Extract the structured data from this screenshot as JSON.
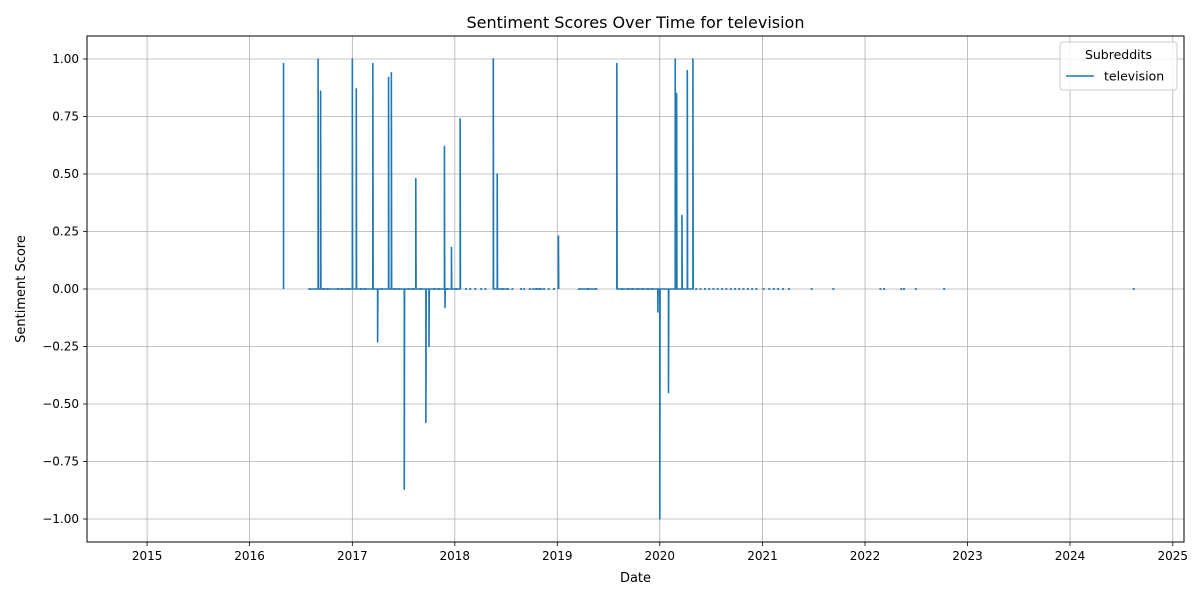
{
  "chart_data": {
    "type": "line",
    "title": "Sentiment Scores Over Time for television",
    "xlabel": "Date",
    "ylabel": "Sentiment Score",
    "xlim": [
      "2014-06-01",
      "2025-02-10"
    ],
    "ylim": [
      -1.1,
      1.1
    ],
    "x_ticks": [
      "2015",
      "2016",
      "2017",
      "2018",
      "2019",
      "2020",
      "2021",
      "2022",
      "2023",
      "2024",
      "2025"
    ],
    "y_ticks": [
      -1.0,
      -0.75,
      -0.5,
      -0.25,
      0.0,
      0.25,
      0.5,
      0.75,
      1.0
    ],
    "y_tick_labels": [
      "−1.00",
      "−0.75",
      "−0.50",
      "−0.25",
      "0.00",
      "0.25",
      "0.50",
      "0.75",
      "1.00"
    ],
    "grid": true,
    "legend": {
      "title": "Subreddits",
      "placement": "top-right"
    },
    "colors": {
      "line": "#1f77b4",
      "grid": "#b0b0b0",
      "axes": "#000000"
    },
    "series": [
      {
        "name": "television",
        "points": [
          [
            "2016-05-01",
            0.0
          ],
          [
            "2016-05-01",
            0.98
          ],
          [
            "2016-05-01",
            0.0
          ],
          [
            "2016-08-01",
            0.0
          ],
          [
            "2016-09-01",
            0.0
          ],
          [
            "2016-09-01",
            1.0
          ],
          [
            "2016-09-02",
            0.0
          ],
          [
            "2016-09-10",
            0.0
          ],
          [
            "2016-09-10",
            0.86
          ],
          [
            "2016-09-11",
            0.0
          ],
          [
            "2016-10-01",
            0.0
          ],
          [
            "2016-11-10",
            0.0
          ],
          [
            "2016-12-01",
            0.0
          ],
          [
            "2017-01-01",
            0.0
          ],
          [
            "2017-01-01",
            1.0
          ],
          [
            "2017-01-02",
            0.0
          ],
          [
            "2017-01-15",
            0.0
          ],
          [
            "2017-01-15",
            0.87
          ],
          [
            "2017-01-16",
            0.0
          ],
          [
            "2017-02-15",
            0.0
          ],
          [
            "2017-03-15",
            0.0
          ],
          [
            "2017-03-15",
            0.98
          ],
          [
            "2017-03-16",
            0.0
          ],
          [
            "2017-04-01",
            0.0
          ],
          [
            "2017-04-01",
            -0.23
          ],
          [
            "2017-04-02",
            0.0
          ],
          [
            "2017-05-10",
            0.0
          ],
          [
            "2017-05-10",
            0.92
          ],
          [
            "2017-05-11",
            0.0
          ],
          [
            "2017-05-20",
            0.0
          ],
          [
            "2017-05-20",
            0.94
          ],
          [
            "2017-05-21",
            0.0
          ],
          [
            "2017-06-10",
            0.0
          ],
          [
            "2017-07-05",
            0.0
          ],
          [
            "2017-07-05",
            -0.87
          ],
          [
            "2017-07-06",
            0.0
          ],
          [
            "2017-08-01",
            0.0
          ],
          [
            "2017-08-15",
            0.0
          ],
          [
            "2017-08-15",
            0.48
          ],
          [
            "2017-08-16",
            0.0
          ],
          [
            "2017-09-20",
            0.0
          ],
          [
            "2017-09-20",
            -0.58
          ],
          [
            "2017-09-21",
            0.0
          ],
          [
            "2017-10-01",
            0.0
          ],
          [
            "2017-10-01",
            -0.25
          ],
          [
            "2017-10-02",
            0.0
          ],
          [
            "2017-11-10",
            0.0
          ],
          [
            "2017-11-25",
            0.0
          ],
          [
            "2017-11-25",
            0.62
          ],
          [
            "2017-11-26",
            0.0
          ],
          [
            "2017-11-27",
            0.0
          ],
          [
            "2017-11-27",
            -0.08
          ],
          [
            "2017-11-28",
            0.0
          ],
          [
            "2017-12-20",
            0.0
          ],
          [
            "2017-12-20",
            0.18
          ],
          [
            "2017-12-21",
            0.0
          ],
          [
            "2018-01-20",
            0.0
          ],
          [
            "2018-01-20",
            0.74
          ],
          [
            "2018-01-21",
            0.0
          ],
          [
            "2018-03-15",
            0.0
          ],
          [
            "2018-05-18",
            0.0
          ],
          [
            "2018-05-18",
            1.0
          ],
          [
            "2018-05-19",
            0.0
          ],
          [
            "2018-06-01",
            0.0
          ],
          [
            "2018-06-01",
            0.5
          ],
          [
            "2018-06-02",
            0.0
          ],
          [
            "2018-07-10",
            0.0
          ],
          [
            "2018-08-20",
            0.0
          ],
          [
            "2018-10-01",
            0.0
          ],
          [
            "2018-11-10",
            0.0
          ],
          [
            "2019-01-05",
            0.0
          ],
          [
            "2019-01-05",
            0.23
          ],
          [
            "2019-01-06",
            0.0
          ],
          [
            "2019-03-20",
            0.0
          ],
          [
            "2019-04-20",
            0.0
          ],
          [
            "2019-05-20",
            0.0
          ],
          [
            "2019-08-01",
            0.0
          ],
          [
            "2019-08-01",
            0.98
          ],
          [
            "2019-08-02",
            0.0
          ],
          [
            "2019-09-10",
            0.0
          ],
          [
            "2019-10-10",
            0.0
          ],
          [
            "2019-11-15",
            0.0
          ],
          [
            "2019-12-25",
            0.0
          ],
          [
            "2019-12-25",
            -0.1
          ],
          [
            "2019-12-26",
            0.0
          ],
          [
            "2020-01-01",
            0.0
          ],
          [
            "2020-01-01",
            -1.0
          ],
          [
            "2020-01-02",
            0.0
          ],
          [
            "2020-02-01",
            0.0
          ],
          [
            "2020-02-01",
            -0.45
          ],
          [
            "2020-02-02",
            0.0
          ],
          [
            "2020-02-25",
            0.0
          ],
          [
            "2020-02-25",
            1.0
          ],
          [
            "2020-02-26",
            0.0
          ],
          [
            "2020-03-01",
            0.0
          ],
          [
            "2020-03-01",
            0.85
          ],
          [
            "2020-03-02",
            0.0
          ],
          [
            "2020-03-20",
            0.0
          ],
          [
            "2020-03-20",
            0.32
          ],
          [
            "2020-03-21",
            0.0
          ],
          [
            "2020-04-08",
            0.0
          ],
          [
            "2020-04-08",
            0.95
          ],
          [
            "2020-04-09",
            0.0
          ],
          [
            "2020-04-28",
            0.0
          ],
          [
            "2020-04-28",
            1.0
          ],
          [
            "2020-04-29",
            0.0
          ],
          [
            "2020-06-15",
            0.0
          ],
          [
            "2020-08-15",
            0.0
          ],
          [
            "2020-10-15",
            0.0
          ],
          [
            "2021-01-15",
            0.0
          ],
          [
            "2021-03-15",
            0.0
          ],
          [
            "2021-06-25",
            0.0
          ],
          [
            "2021-09-10",
            0.0
          ],
          [
            "2022-03-01",
            0.0
          ],
          [
            "2022-05-15",
            0.0
          ],
          [
            "2022-07-01",
            0.0
          ],
          [
            "2022-10-15",
            0.0
          ],
          [
            "2024-08-15",
            0.0
          ]
        ]
      }
    ],
    "dot_dates": [
      "2016-08-01",
      "2016-09-20",
      "2016-10-05",
      "2016-11-10",
      "2016-11-25",
      "2016-12-10",
      "2016-12-20",
      "2017-02-01",
      "2017-02-15",
      "2017-04-15",
      "2017-06-01",
      "2017-06-15",
      "2017-07-20",
      "2017-08-05",
      "2017-09-01",
      "2017-10-20",
      "2017-11-05",
      "2017-12-05",
      "2018-01-05",
      "2018-02-10",
      "2018-02-25",
      "2018-03-15",
      "2018-04-05",
      "2018-04-20",
      "2018-06-20",
      "2018-07-10",
      "2018-07-25",
      "2018-08-25",
      "2018-09-05",
      "2018-09-25",
      "2018-10-20",
      "2018-11-01",
      "2018-11-15",
      "2018-12-01",
      "2018-12-20",
      "2019-03-20",
      "2019-04-20",
      "2019-05-20",
      "2019-08-20",
      "2019-09-10",
      "2019-09-25",
      "2019-10-15",
      "2019-11-01",
      "2019-11-20",
      "2019-12-05",
      "2020-05-10",
      "2020-05-25",
      "2020-06-10",
      "2020-06-25",
      "2020-07-10",
      "2020-07-25",
      "2020-08-10",
      "2020-08-25",
      "2020-09-10",
      "2020-09-25",
      "2020-10-10",
      "2020-10-25",
      "2020-11-10",
      "2020-11-25",
      "2020-12-10",
      "2021-01-05",
      "2021-01-25",
      "2021-02-10",
      "2021-02-25",
      "2021-03-15",
      "2021-04-05",
      "2021-06-25",
      "2021-09-10",
      "2022-02-25",
      "2022-03-10",
      "2022-05-10",
      "2022-05-20",
      "2022-07-01",
      "2022-10-10",
      "2024-08-15"
    ]
  }
}
